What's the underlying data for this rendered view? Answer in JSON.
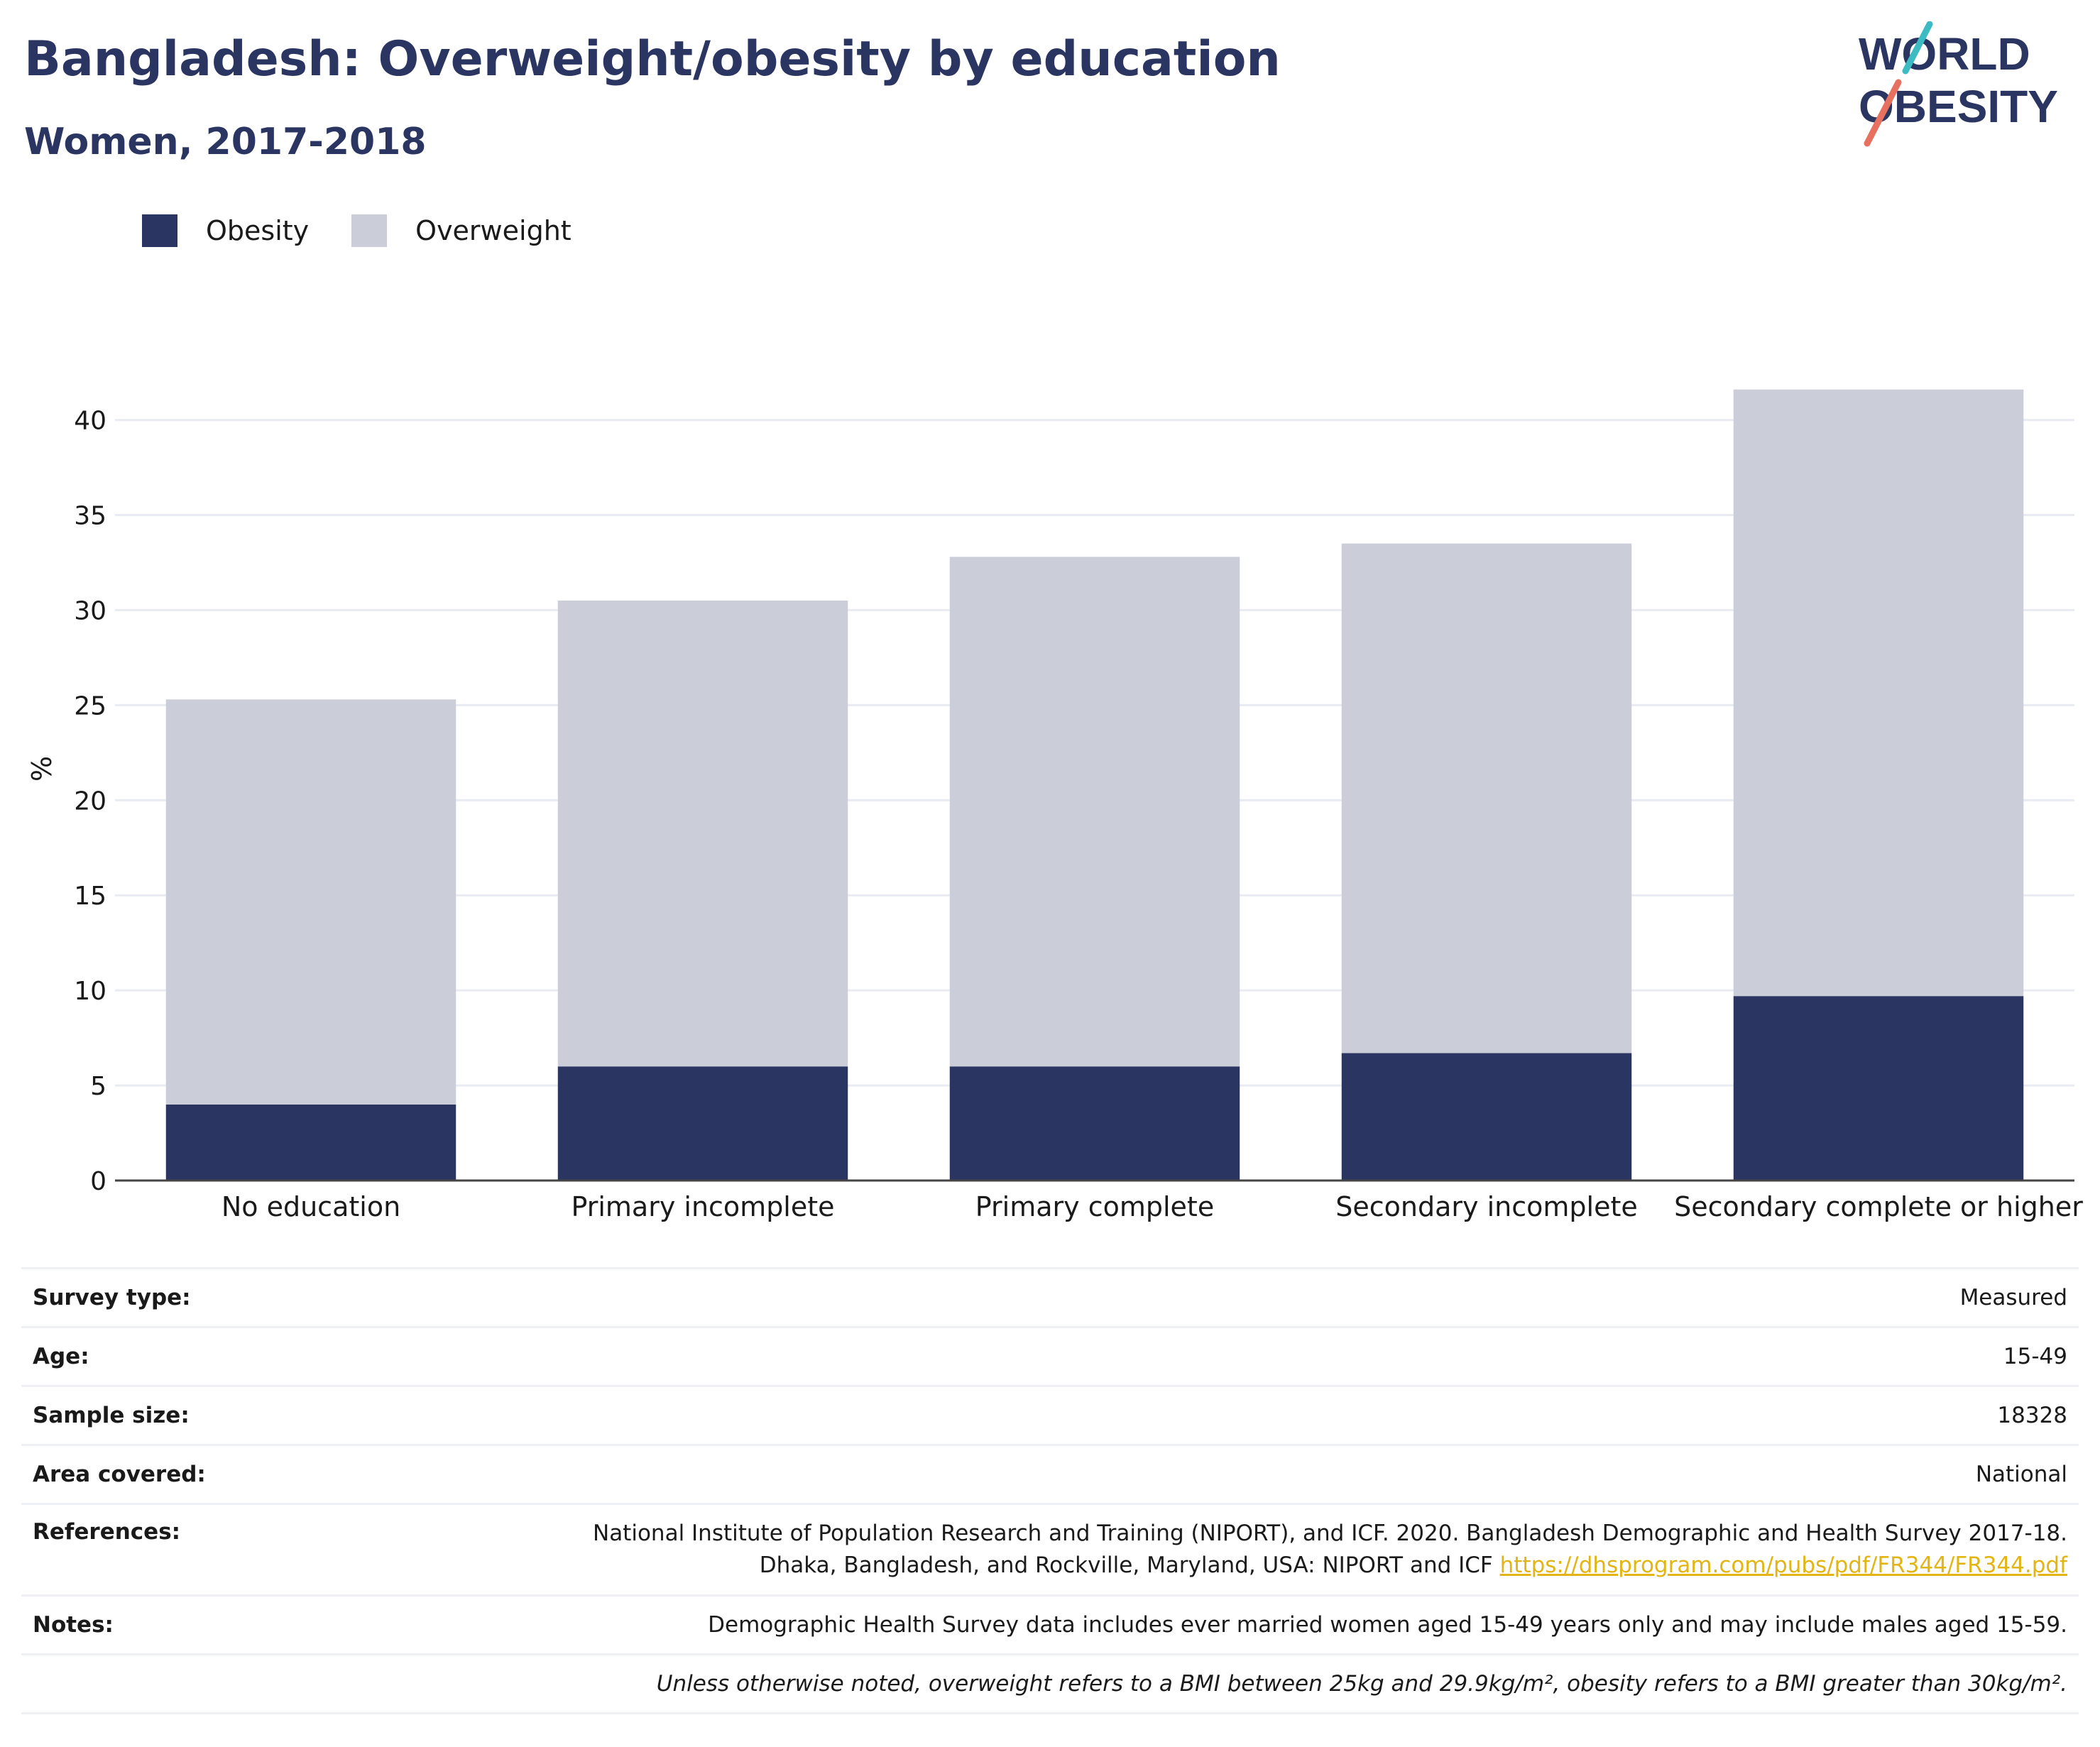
{
  "header": {
    "title": "Bangladesh: Overweight/obesity by education",
    "subtitle": "Women, 2017-2018"
  },
  "logo": {
    "line1": "WORLD",
    "line2": "OBESITY"
  },
  "colors": {
    "obesity": "#2b3562",
    "overweight": "#cbcdd8",
    "title": "#2b3562",
    "link": "#e2b514"
  },
  "chart_data": {
    "type": "bar",
    "stacked": true,
    "categories": [
      "No education",
      "Primary incomplete",
      "Primary complete",
      "Secondary incomplete",
      "Secondary complete or higher"
    ],
    "series": [
      {
        "name": "Obesity",
        "values": [
          4.0,
          6.0,
          6.0,
          6.7,
          9.7
        ]
      },
      {
        "name": "Overweight",
        "values": [
          21.3,
          24.5,
          26.8,
          26.8,
          31.9
        ]
      }
    ],
    "ylabel": "%",
    "ylim": [
      0,
      42
    ],
    "yticks": [
      0,
      5,
      10,
      15,
      20,
      25,
      30,
      35,
      40
    ],
    "legend_position": "top-left",
    "grid": true
  },
  "info": {
    "survey_type": {
      "label": "Survey type:",
      "value": "Measured"
    },
    "age": {
      "label": "Age:",
      "value": "15-49"
    },
    "sample_size": {
      "label": "Sample size:",
      "value": "18328"
    },
    "area": {
      "label": "Area covered:",
      "value": "National"
    },
    "references": {
      "label": "References:",
      "line1": "National Institute of Population Research and Training (NIPORT), and ICF. 2020. Bangladesh Demographic and Health Survey 2017-18.",
      "line2": "Dhaka, Bangladesh, and Rockville, Maryland, USA: NIPORT and ICF",
      "link": "https://dhsprogram.com/pubs/pdf/FR344/FR344.pdf"
    },
    "notes": {
      "label": "Notes:",
      "value": "Demographic Health Survey data includes ever married women aged 15-49 years only and may include males aged 15-59."
    },
    "footnote": "Unless otherwise noted, overweight refers to a BMI between 25kg and 29.9kg/m², obesity refers to a BMI greater than 30kg/m²."
  }
}
